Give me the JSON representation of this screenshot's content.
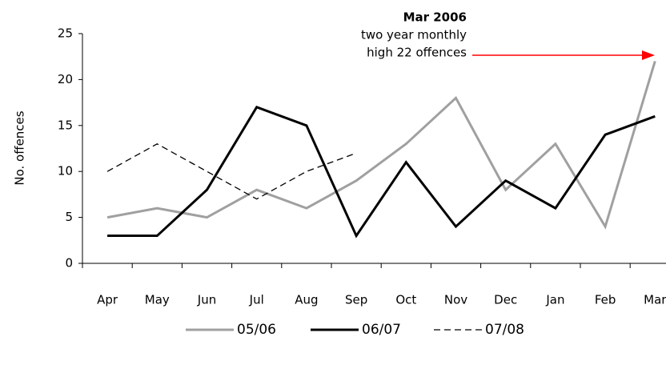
{
  "chart_data": {
    "type": "line",
    "ylabel": "No. offences",
    "categories": [
      "Apr",
      "May",
      "Jun",
      "Jul",
      "Aug",
      "Sep",
      "Oct",
      "Nov",
      "Dec",
      "Jan",
      "Feb",
      "Mar"
    ],
    "series": [
      {
        "name": "05/06",
        "color": "#a0a0a0",
        "values": [
          5,
          6,
          5,
          8,
          6,
          9,
          13,
          18,
          8,
          13,
          4,
          22
        ]
      },
      {
        "name": "06/07",
        "color": "#000000",
        "values": [
          3,
          3,
          8,
          17,
          15,
          3,
          11,
          4,
          9,
          6,
          14,
          16
        ]
      },
      {
        "name": "07/08",
        "color": "#000000",
        "values": [
          10,
          13,
          10,
          7,
          10,
          12,
          null,
          null,
          null,
          null,
          null,
          null
        ]
      }
    ],
    "ylim": [
      0,
      25
    ],
    "yticks": [
      0,
      5,
      10,
      15,
      20,
      25
    ],
    "annotation": {
      "title": "Mar 2006",
      "lines": [
        "two year monthly",
        "high 22 offences"
      ],
      "arrow_color": "#ff0000"
    },
    "legend": "bottom"
  }
}
